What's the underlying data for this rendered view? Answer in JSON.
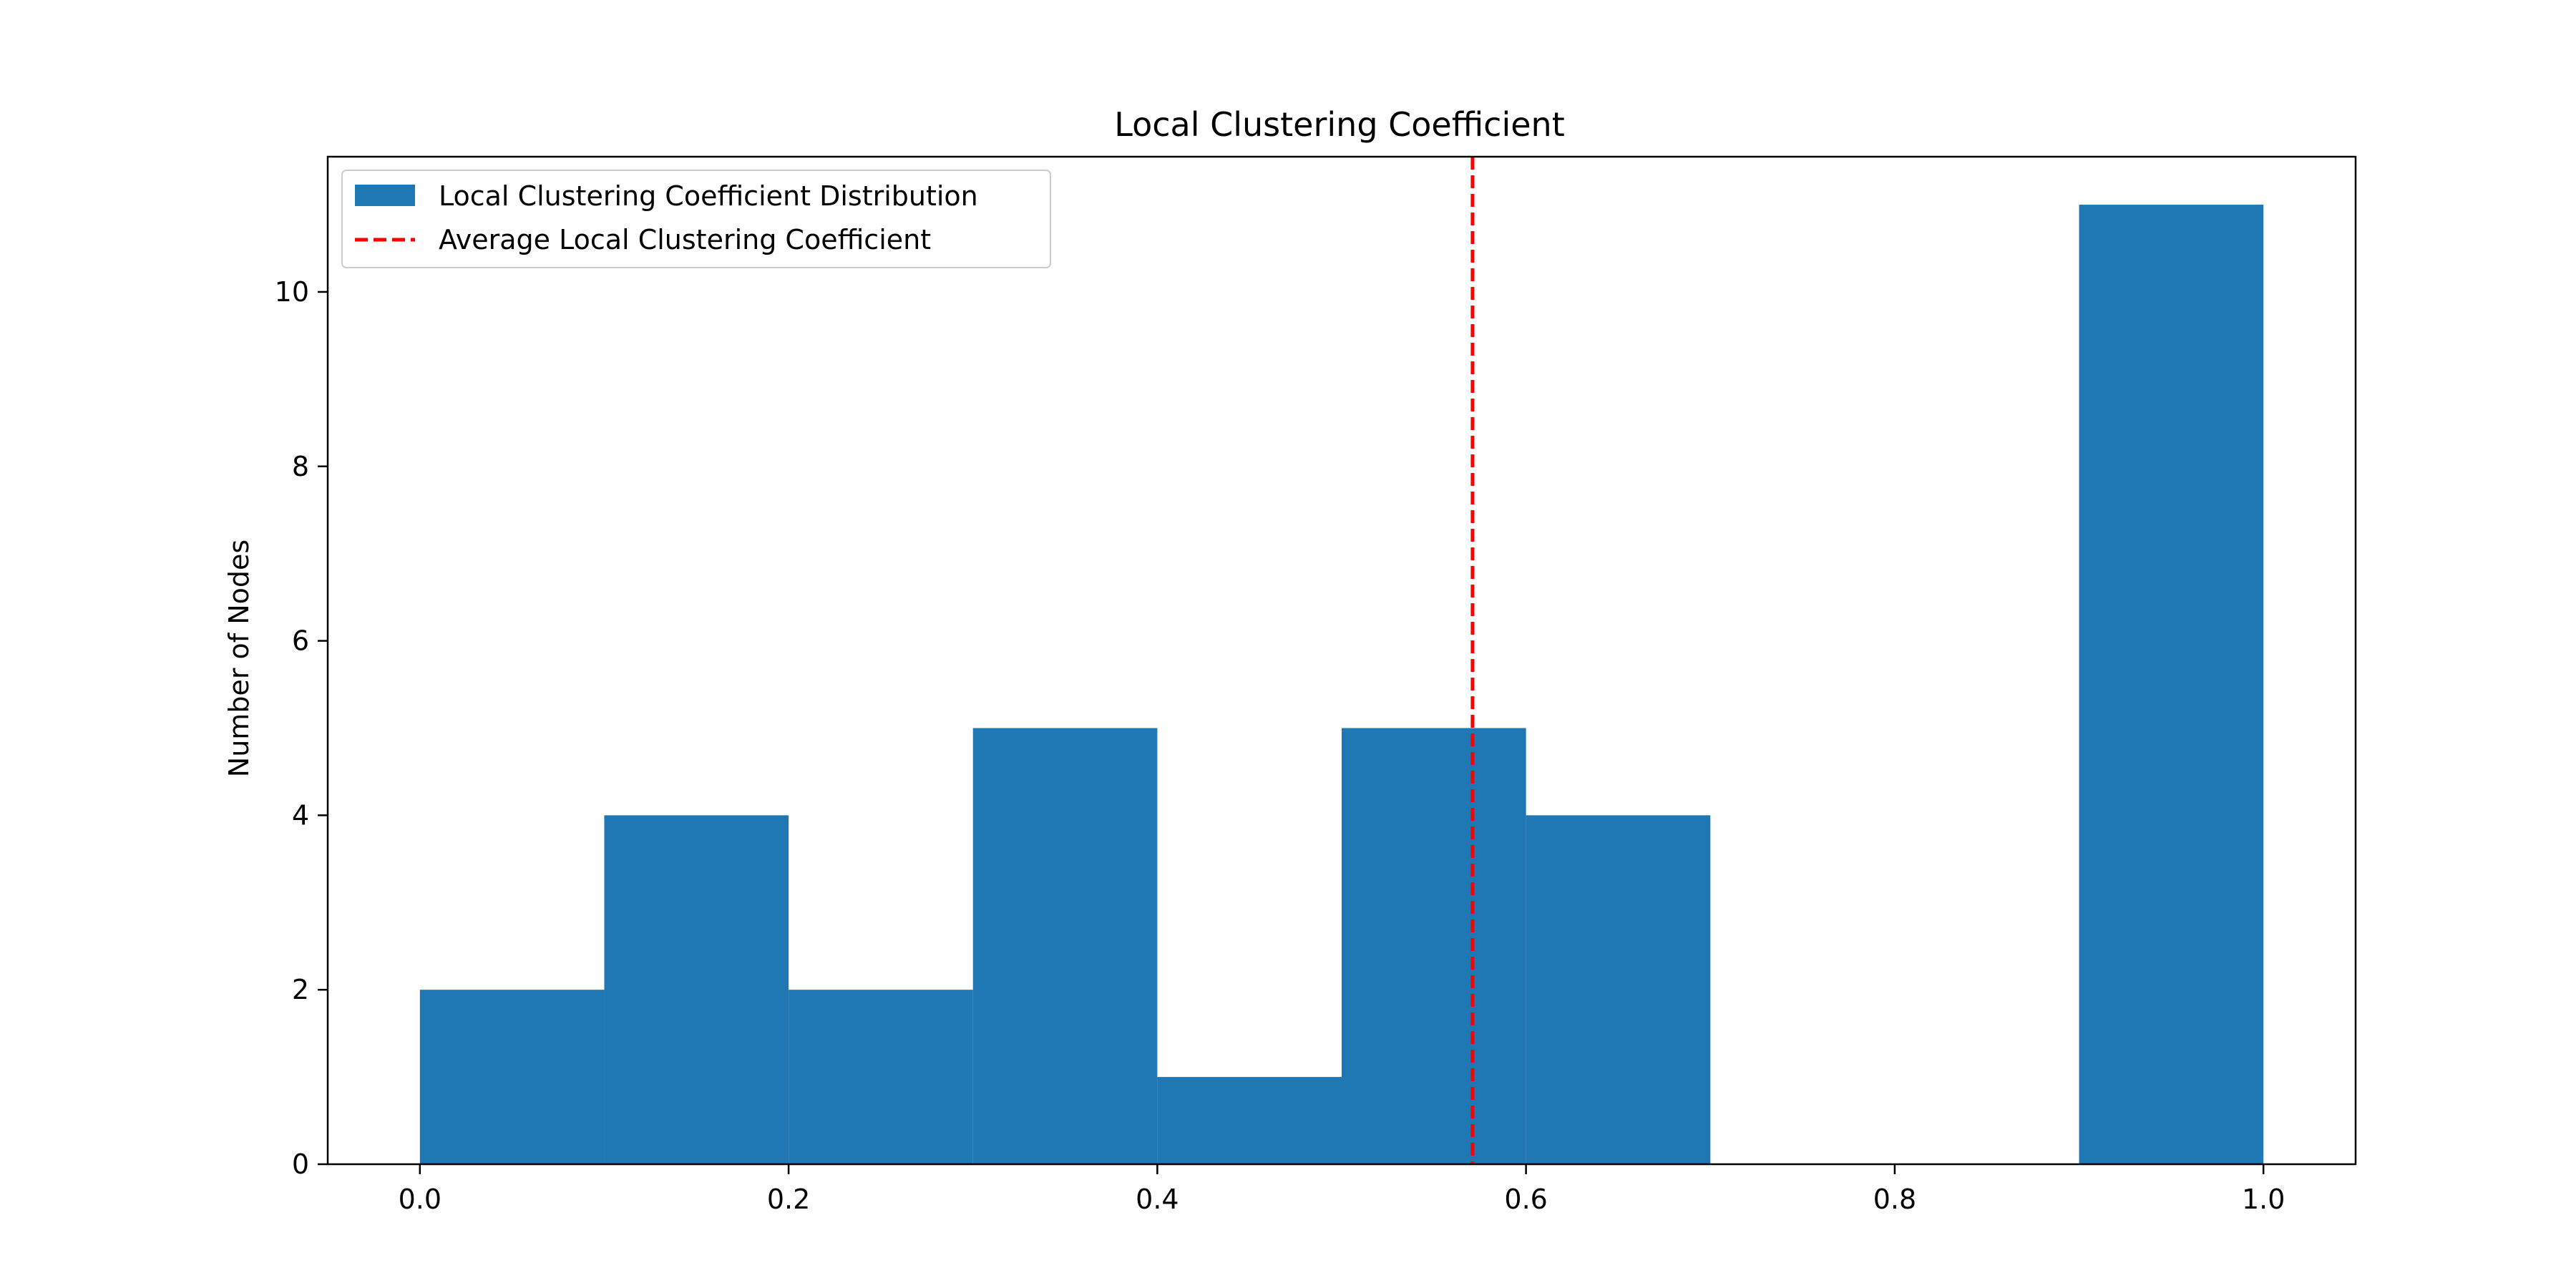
{
  "chart_data": {
    "type": "bar",
    "title": "Local Clustering Coefficient",
    "xlabel": "",
    "ylabel": "Number of Nodes",
    "bin_edges": [
      0.0,
      0.1,
      0.2,
      0.3,
      0.4,
      0.5,
      0.6,
      0.7,
      0.8,
      0.9,
      1.0
    ],
    "values": [
      2,
      4,
      2,
      5,
      1,
      5,
      4,
      0,
      0,
      11
    ],
    "average_line": 0.571,
    "xlim": [
      -0.05,
      1.05
    ],
    "ylim": [
      0,
      11.55
    ],
    "xticks": [
      "0.0",
      "0.2",
      "0.4",
      "0.6",
      "0.8",
      "1.0"
    ],
    "xtick_values": [
      0.0,
      0.2,
      0.4,
      0.6,
      0.8,
      1.0
    ],
    "yticks": [
      "0",
      "2",
      "4",
      "6",
      "8",
      "10"
    ],
    "ytick_values": [
      0,
      2,
      4,
      6,
      8,
      10
    ],
    "grid": false,
    "legend_position": "top-left",
    "legend": [
      {
        "label": "Local Clustering Coefficient Distribution",
        "kind": "patch",
        "color": "#1f77b4"
      },
      {
        "label": "Average Local Clustering Coefficient",
        "kind": "dashed-line",
        "color": "#ff0000"
      }
    ],
    "bar_color": "#1f77b4",
    "average_color": "#ff0000"
  }
}
